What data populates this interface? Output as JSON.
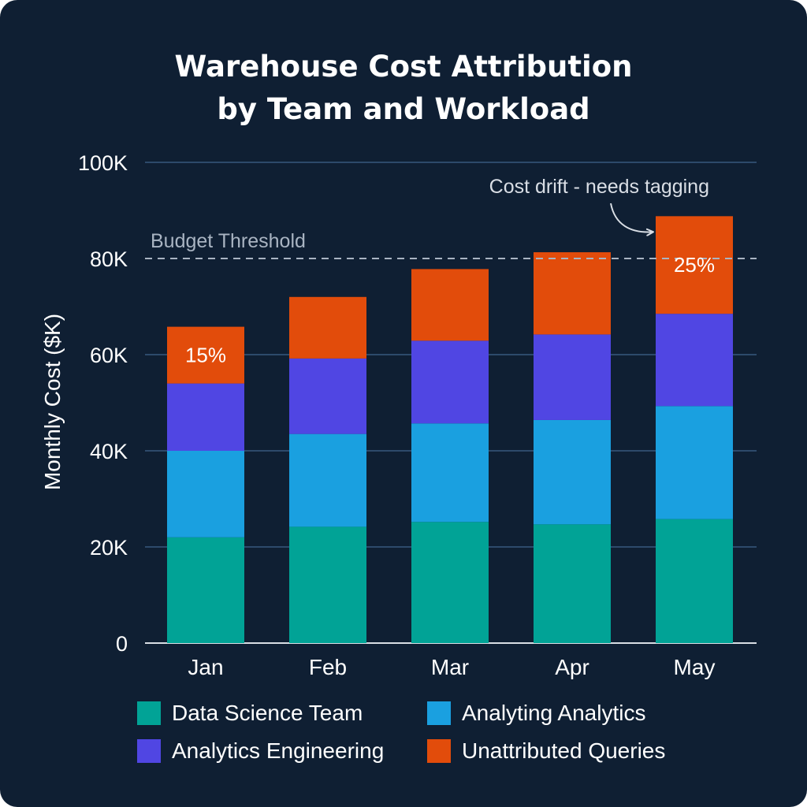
{
  "title_lines": [
    "Warehouse Cost Attribution",
    "by Team and Workload"
  ],
  "chart_data": {
    "type": "bar",
    "stacked": true,
    "categories": [
      "Jan",
      "Feb",
      "Mar",
      "Apr",
      "May"
    ],
    "series": [
      {
        "name": "Data Science Team",
        "color": "#01a396",
        "values": [
          22,
          24.2,
          25.2,
          24.7,
          25.8
        ]
      },
      {
        "name": "Analyting Analytics",
        "color": "#1aa0e0",
        "values": [
          18,
          19.3,
          20.5,
          21.7,
          23.5
        ]
      },
      {
        "name": "Analytics Engineering",
        "color": "#5046e3",
        "values": [
          14,
          15.7,
          17.2,
          17.8,
          19.2
        ]
      },
      {
        "name": "Unattributed Queries",
        "color": "#e24c0b",
        "values": [
          11.8,
          12.8,
          14.9,
          17.1,
          20.3
        ]
      }
    ],
    "ylabel": "Monthly Cost ($K)",
    "ylim": [
      0,
      100
    ],
    "yticks": [
      0,
      20,
      40,
      60,
      80,
      100
    ],
    "ytick_labels": [
      "0",
      "20K",
      "40K",
      "60K",
      "80K",
      "100K"
    ],
    "grid": true,
    "budget_threshold": {
      "value": 80,
      "label": "Budget Threshold",
      "color": "#a9b4c2"
    },
    "bar_labels": [
      {
        "category": "Jan",
        "series": "Unattributed Queries",
        "text": "15%"
      },
      {
        "category": "May",
        "series": "Unattributed Queries",
        "text": "25%"
      }
    ],
    "annotation": {
      "text": "Cost drift - needs tagging",
      "category": "May"
    }
  },
  "colors": {
    "background": "#0f1f33",
    "grid": "#2d4a6b",
    "axis": "#d9dee5",
    "text": "#ffffff",
    "muted_text": "#c9d1db"
  }
}
